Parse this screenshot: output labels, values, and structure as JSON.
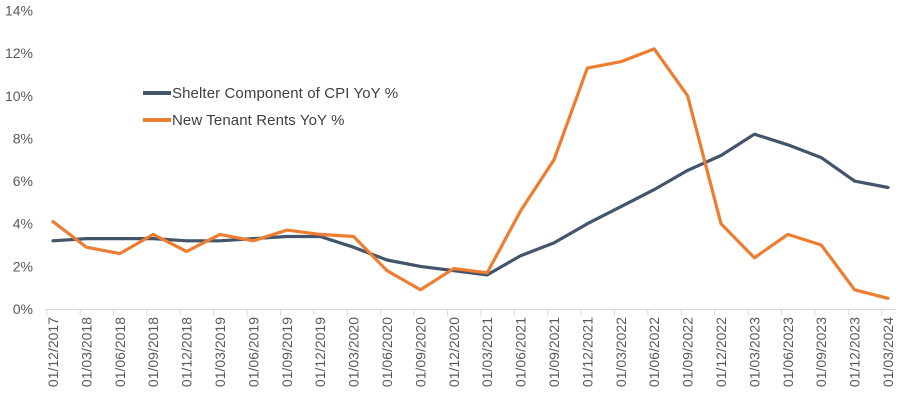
{
  "chart_data": {
    "type": "line",
    "title": "",
    "xlabel": "",
    "ylabel": "",
    "categories": [
      "01/12/2017",
      "01/03/2018",
      "01/06/2018",
      "01/09/2018",
      "01/12/2018",
      "01/03/2019",
      "01/06/2019",
      "01/09/2019",
      "01/12/2019",
      "01/03/2020",
      "01/06/2020",
      "01/09/2020",
      "01/12/2020",
      "01/03/2021",
      "01/06/2021",
      "01/09/2021",
      "01/12/2021",
      "01/03/2022",
      "01/06/2022",
      "01/09/2022",
      "01/12/2022",
      "01/03/2023",
      "01/06/2023",
      "01/09/2023",
      "01/12/2023",
      "01/03/2024"
    ],
    "series": [
      {
        "name": "Shelter Component of CPI YoY %",
        "color": "#44546A",
        "values": [
          3.2,
          3.3,
          3.3,
          3.3,
          3.2,
          3.2,
          3.3,
          3.4,
          3.4,
          2.9,
          2.3,
          2.0,
          1.8,
          1.6,
          2.5,
          3.1,
          4.0,
          4.8,
          5.6,
          6.5,
          7.2,
          8.2,
          7.7,
          7.1,
          6.0,
          5.7
        ]
      },
      {
        "name": "New Tenant Rents YoY %",
        "color": "#ED7D31",
        "values": [
          4.1,
          2.9,
          2.6,
          3.5,
          2.7,
          3.5,
          3.2,
          3.7,
          3.5,
          3.4,
          1.8,
          0.9,
          1.9,
          1.7,
          4.6,
          7.0,
          11.3,
          11.6,
          12.2,
          10.0,
          4.0,
          2.4,
          3.5,
          3.0,
          0.9,
          0.5
        ]
      }
    ],
    "y_tick_labels": [
      "0%",
      "2%",
      "4%",
      "6%",
      "8%",
      "10%",
      "12%",
      "14%"
    ],
    "ylim": [
      0,
      14
    ],
    "y_tick_step": 2,
    "grid": false,
    "legend_position": "inside-top-left"
  },
  "colors": {
    "axis_line": "#D9D9D9",
    "tick_mark": "#D9D9D9",
    "axis_label": "#595959",
    "legend_text": "#404040",
    "background": "#FFFFFF"
  }
}
